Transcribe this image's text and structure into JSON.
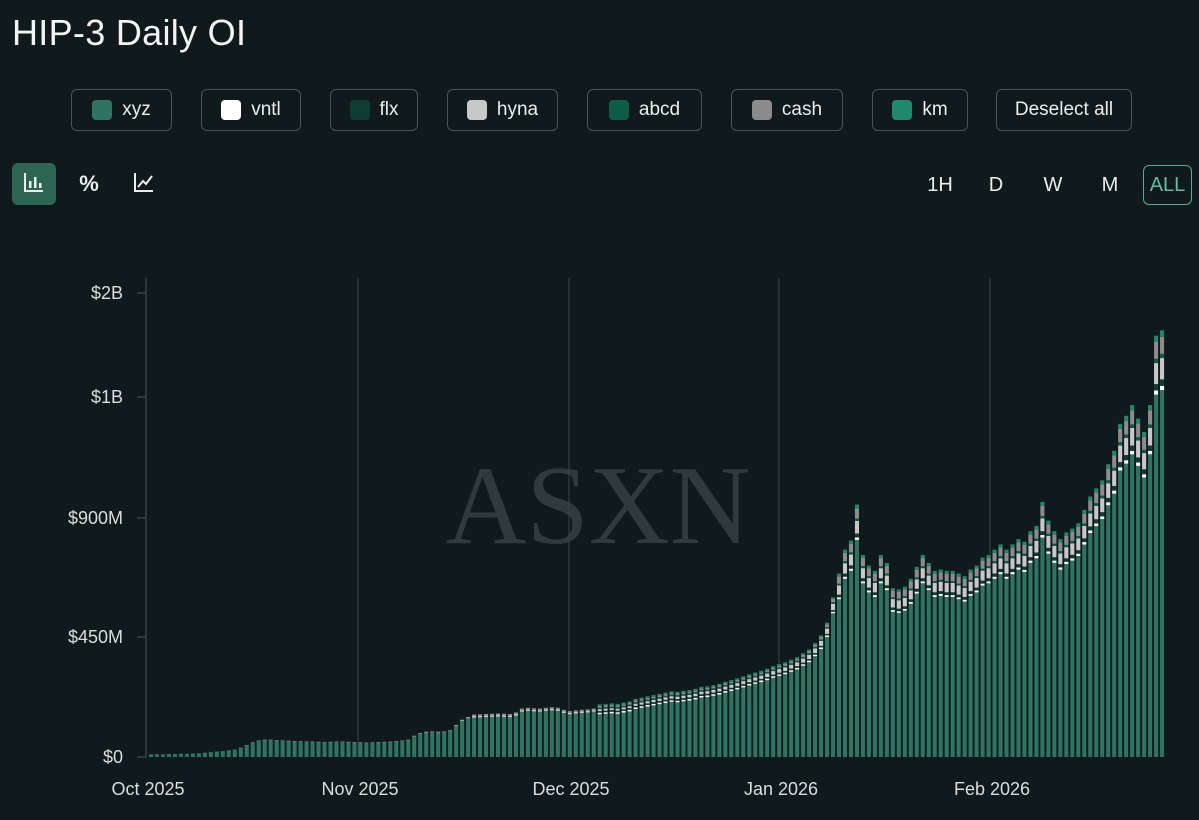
{
  "title": "HIP-3 Daily OI",
  "watermark": "ASXN",
  "legend": [
    {
      "label": "xyz",
      "color": "#2f7460"
    },
    {
      "label": "vntl",
      "color": "#ffffff"
    },
    {
      "label": "flx",
      "color": "#0f3d2f"
    },
    {
      "label": "hyna",
      "color": "#c8c8c8"
    },
    {
      "label": "abcd",
      "color": "#0d5c45"
    },
    {
      "label": "cash",
      "color": "#8c8c8c"
    },
    {
      "label": "km",
      "color": "#1f8a6b"
    }
  ],
  "deselect_label": "Deselect all",
  "view_modes": [
    {
      "icon": "bar-chart-icon",
      "active": true
    },
    {
      "icon": "percent-icon",
      "label": "%",
      "active": false
    },
    {
      "icon": "line-chart-icon",
      "active": false
    }
  ],
  "timeframes": [
    "1H",
    "D",
    "W",
    "M",
    "ALL"
  ],
  "active_timeframe": "ALL",
  "chart_data": {
    "type": "bar",
    "stacked": true,
    "title": "HIP-3 Daily OI",
    "y_ticks": [
      "$0",
      "$450M",
      "$900M",
      "$1B",
      "$2B"
    ],
    "x_ticks": [
      "Oct 2025",
      "Nov 2025",
      "Dec 2025",
      "Jan 2026",
      "Feb 2026"
    ],
    "grid": "vertical lines at month starts",
    "series_names": [
      "xyz",
      "vntl",
      "flx",
      "hyna",
      "abcd",
      "cash",
      "km"
    ],
    "daily_total_usd_millions": [
      10,
      10,
      10,
      11,
      11,
      12,
      12,
      13,
      14,
      16,
      18,
      20,
      22,
      25,
      28,
      35,
      45,
      55,
      62,
      65,
      65,
      63,
      62,
      61,
      60,
      59,
      58,
      58,
      57,
      56,
      57,
      58,
      58,
      57,
      56,
      55,
      54,
      55,
      56,
      57,
      58,
      60,
      62,
      65,
      80,
      90,
      95,
      96,
      95,
      96,
      100,
      120,
      140,
      150,
      152,
      153,
      154,
      155,
      156,
      155,
      154,
      160,
      175,
      178,
      176,
      175,
      178,
      180,
      178,
      170,
      165,
      168,
      170,
      172,
      175,
      178,
      180,
      182,
      180,
      185,
      190,
      200,
      205,
      210,
      215,
      220,
      225,
      230,
      228,
      232,
      235,
      240,
      248,
      250,
      255,
      260,
      268,
      275,
      282,
      290,
      298,
      305,
      312,
      320,
      330,
      338,
      345,
      355,
      365,
      380,
      395,
      420,
      450,
      500,
      600,
      690,
      780,
      815,
      950,
      760,
      720,
      700,
      760,
      730,
      635,
      630,
      640,
      670,
      715,
      760,
      730,
      700,
      705,
      700,
      700,
      690,
      680,
      705,
      720,
      750,
      760,
      780,
      800,
      780,
      800,
      820,
      810,
      850,
      870,
      960,
      890,
      850,
      820,
      845,
      860,
      880,
      930,
      980,
      1010,
      1040,
      1100,
      1150,
      1250,
      1280,
      1320,
      1270,
      1220,
      1320,
      1580,
      1600
    ]
  }
}
